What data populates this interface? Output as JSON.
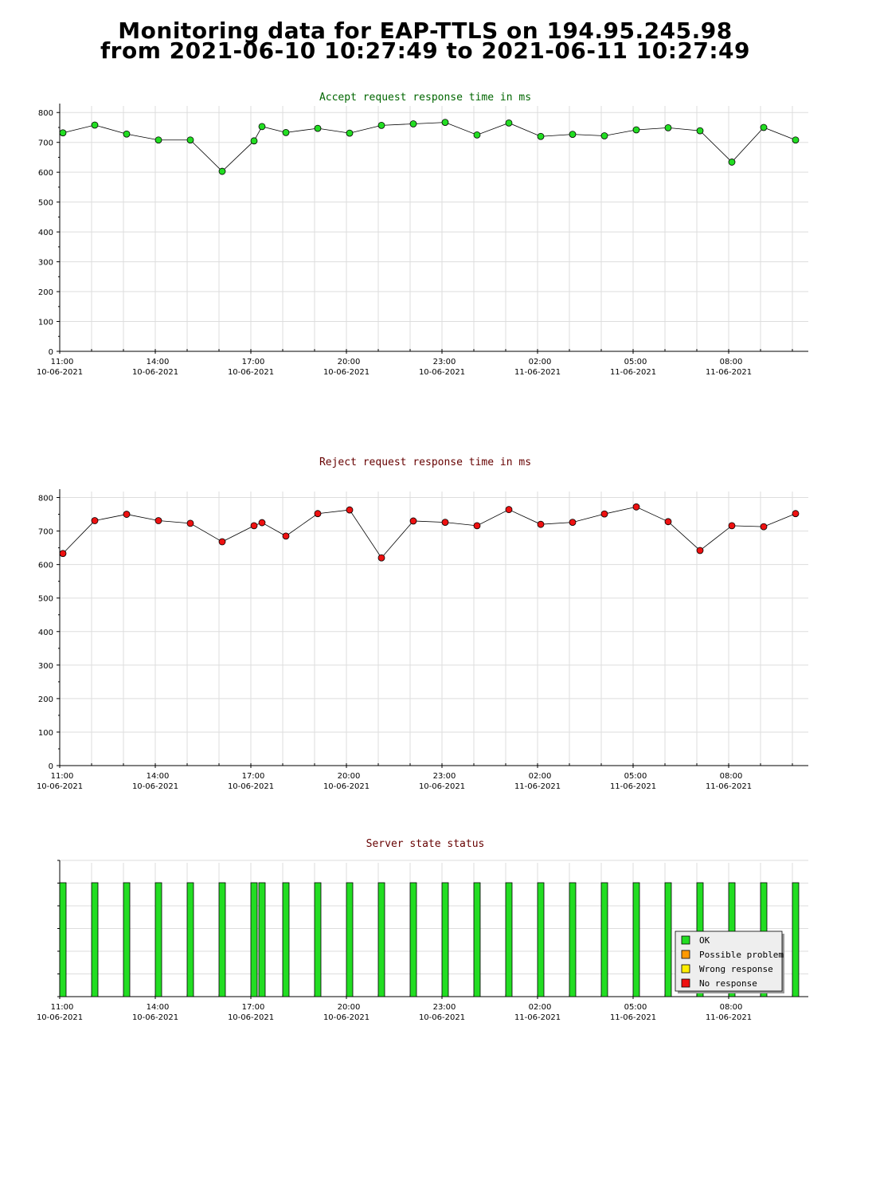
{
  "header": {
    "line1": "Monitoring data for EAP-TTLS on 194.95.245.98",
    "line2": "from 2021-06-10 10:27:49 to 2021-06-11 10:27:49"
  },
  "x_ticks": [
    {
      "hours": 0,
      "time": "11:00",
      "date": "10-06-2021"
    },
    {
      "hours": 3,
      "time": "14:00",
      "date": "10-06-2021"
    },
    {
      "hours": 6,
      "time": "17:00",
      "date": "10-06-2021"
    },
    {
      "hours": 9,
      "time": "20:00",
      "date": "10-06-2021"
    },
    {
      "hours": 12,
      "time": "23:00",
      "date": "10-06-2021"
    },
    {
      "hours": 15,
      "time": "02:00",
      "date": "11-06-2021"
    },
    {
      "hours": 18,
      "time": "05:00",
      "date": "11-06-2021"
    },
    {
      "hours": 21,
      "time": "08:00",
      "date": "11-06-2021"
    }
  ],
  "chart_data": [
    {
      "type": "line",
      "title": "Accept request response time in ms",
      "title_color": "#006600",
      "marker_color": "#22dd22",
      "ylim": [
        0,
        800
      ],
      "yticks": [
        0,
        100,
        200,
        300,
        400,
        500,
        600,
        700,
        800
      ],
      "x_range_hours": [
        0,
        23.5
      ],
      "grid": true,
      "points": [
        {
          "x": 0.1,
          "y": 732
        },
        {
          "x": 1.1,
          "y": 758
        },
        {
          "x": 2.1,
          "y": 728
        },
        {
          "x": 3.1,
          "y": 708
        },
        {
          "x": 4.1,
          "y": 708
        },
        {
          "x": 5.1,
          "y": 603
        },
        {
          "x": 6.1,
          "y": 705
        },
        {
          "x": 6.35,
          "y": 753
        },
        {
          "x": 7.1,
          "y": 733
        },
        {
          "x": 8.1,
          "y": 747
        },
        {
          "x": 9.1,
          "y": 731
        },
        {
          "x": 10.1,
          "y": 757
        },
        {
          "x": 11.1,
          "y": 762
        },
        {
          "x": 12.1,
          "y": 767
        },
        {
          "x": 13.1,
          "y": 725
        },
        {
          "x": 14.1,
          "y": 765
        },
        {
          "x": 15.1,
          "y": 720
        },
        {
          "x": 16.1,
          "y": 727
        },
        {
          "x": 17.1,
          "y": 722
        },
        {
          "x": 18.1,
          "y": 742
        },
        {
          "x": 19.1,
          "y": 749
        },
        {
          "x": 20.1,
          "y": 739
        },
        {
          "x": 21.1,
          "y": 634
        },
        {
          "x": 22.1,
          "y": 750
        },
        {
          "x": 23.1,
          "y": 708
        }
      ]
    },
    {
      "type": "line",
      "title": "Reject request response time in ms",
      "title_color": "#660000",
      "marker_color": "#ee1111",
      "ylim": [
        0,
        800
      ],
      "yticks": [
        0,
        100,
        200,
        300,
        400,
        500,
        600,
        700,
        800
      ],
      "x_range_hours": [
        0,
        23.5
      ],
      "grid": true,
      "points": [
        {
          "x": 0.1,
          "y": 633
        },
        {
          "x": 1.1,
          "y": 731
        },
        {
          "x": 2.1,
          "y": 750
        },
        {
          "x": 3.1,
          "y": 731
        },
        {
          "x": 4.1,
          "y": 723
        },
        {
          "x": 5.1,
          "y": 668
        },
        {
          "x": 6.1,
          "y": 716
        },
        {
          "x": 6.35,
          "y": 725
        },
        {
          "x": 7.1,
          "y": 685
        },
        {
          "x": 8.1,
          "y": 752
        },
        {
          "x": 9.1,
          "y": 763
        },
        {
          "x": 10.1,
          "y": 620
        },
        {
          "x": 11.1,
          "y": 730
        },
        {
          "x": 12.1,
          "y": 726
        },
        {
          "x": 13.1,
          "y": 716
        },
        {
          "x": 14.1,
          "y": 764
        },
        {
          "x": 15.1,
          "y": 720
        },
        {
          "x": 16.1,
          "y": 726
        },
        {
          "x": 17.1,
          "y": 751
        },
        {
          "x": 18.1,
          "y": 772
        },
        {
          "x": 19.1,
          "y": 728
        },
        {
          "x": 20.1,
          "y": 642
        },
        {
          "x": 21.1,
          "y": 716
        },
        {
          "x": 22.1,
          "y": 713
        },
        {
          "x": 23.1,
          "y": 752
        }
      ]
    },
    {
      "type": "bar",
      "title": "Server state status",
      "title_color": "#660000",
      "x_range_hours": [
        0,
        23.5
      ],
      "grid": true,
      "legend_position": "bottom-right",
      "legend": [
        {
          "label": "OK",
          "color": "#22dd22"
        },
        {
          "label": "Possible problem",
          "color": "#ff9900"
        },
        {
          "label": "Wrong response",
          "color": "#ffee00"
        },
        {
          "label": "No response",
          "color": "#ee1111"
        }
      ],
      "bars": [
        {
          "x": 0.1,
          "state": "OK"
        },
        {
          "x": 1.1,
          "state": "OK"
        },
        {
          "x": 2.1,
          "state": "OK"
        },
        {
          "x": 3.1,
          "state": "OK"
        },
        {
          "x": 4.1,
          "state": "OK"
        },
        {
          "x": 5.1,
          "state": "OK"
        },
        {
          "x": 6.1,
          "state": "OK"
        },
        {
          "x": 6.35,
          "state": "OK"
        },
        {
          "x": 7.1,
          "state": "OK"
        },
        {
          "x": 8.1,
          "state": "OK"
        },
        {
          "x": 9.1,
          "state": "OK"
        },
        {
          "x": 10.1,
          "state": "OK"
        },
        {
          "x": 11.1,
          "state": "OK"
        },
        {
          "x": 12.1,
          "state": "OK"
        },
        {
          "x": 13.1,
          "state": "OK"
        },
        {
          "x": 14.1,
          "state": "OK"
        },
        {
          "x": 15.1,
          "state": "OK"
        },
        {
          "x": 16.1,
          "state": "OK"
        },
        {
          "x": 17.1,
          "state": "OK"
        },
        {
          "x": 18.1,
          "state": "OK"
        },
        {
          "x": 19.1,
          "state": "OK"
        },
        {
          "x": 20.1,
          "state": "OK"
        },
        {
          "x": 21.1,
          "state": "OK"
        },
        {
          "x": 22.1,
          "state": "OK"
        },
        {
          "x": 23.1,
          "state": "OK"
        }
      ]
    }
  ]
}
